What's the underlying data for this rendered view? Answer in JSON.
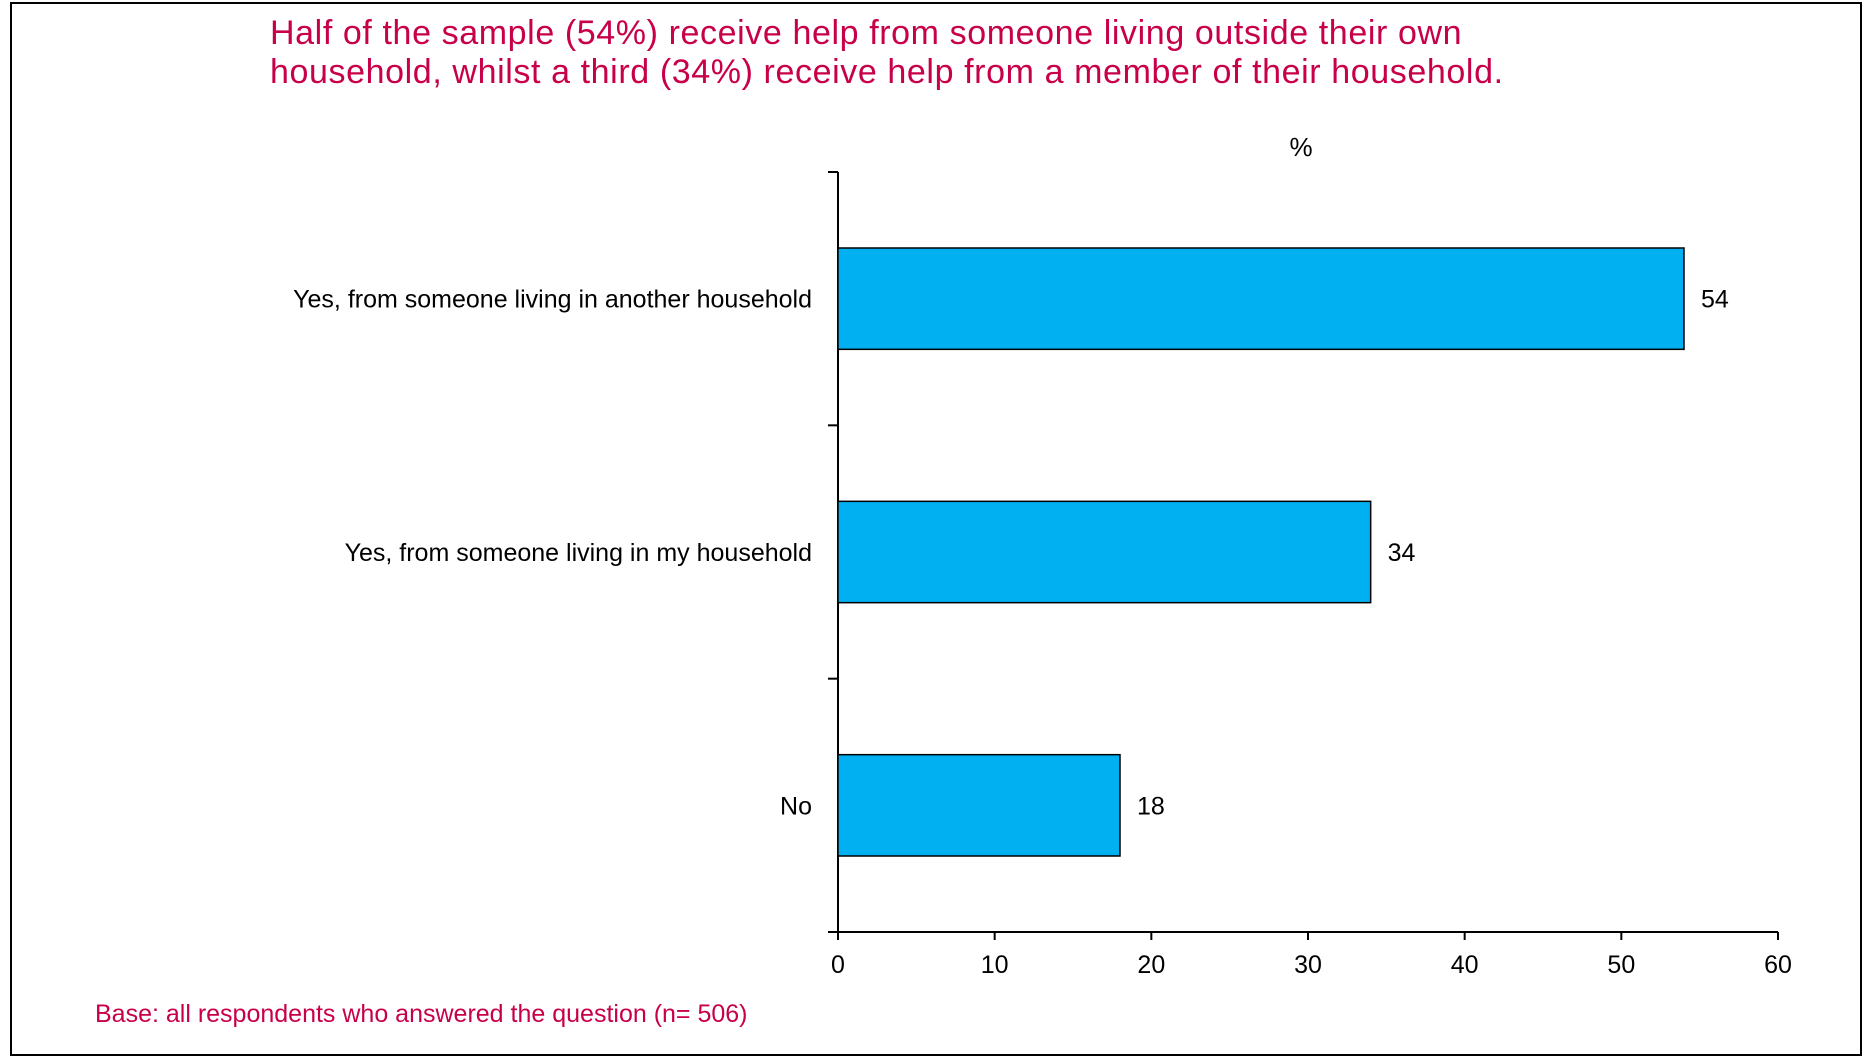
{
  "title_lines": [
    "Half of the sample (54%) receive help from someone living outside their own",
    "household, whilst a third (34%) receive help from a member of their household."
  ],
  "footnote": "Base: all respondents who answered the question (n= 506)",
  "colors": {
    "bar": "#00b0f0",
    "title": "#c8004a",
    "axis": "#000000"
  },
  "chart_data": {
    "type": "bar",
    "orientation": "horizontal",
    "unit_label": "%",
    "categories": [
      "Yes, from someone living in another household",
      "Yes, from someone living in my household",
      "No"
    ],
    "values": [
      54,
      34,
      18
    ],
    "xlim": [
      0,
      60
    ],
    "xticks": [
      0,
      10,
      20,
      30,
      40,
      50,
      60
    ],
    "grid": false,
    "legend": "none"
  }
}
